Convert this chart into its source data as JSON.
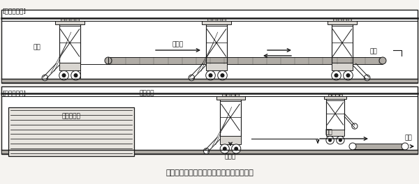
{
  "title": "围4　自動詰込み・取出し装置による作業例",
  "bg_color": "#f5f3f0",
  "line_color": "#1a1a1a",
  "white": "#ffffff",
  "gray_light": "#d8d5d0",
  "gray_medium": "#b0aca6",
  "top_label": "[詰込み作業]",
  "bottom_label": "[取出し作業]",
  "label_zairyo": "材料",
  "label_tsumikomi": "積込み",
  "label_toatsu": "踏圧",
  "label_zairyo_tosai": "材料搭載",
  "label_silage": "サイレージ",
  "label_kiri": "切出し",
  "label_haisyutsu": "排出",
  "label_ushi": "牛へ",
  "fig_caption": "围　自動詰込み・取出し装置による作業例"
}
